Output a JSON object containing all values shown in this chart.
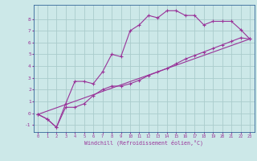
{
  "xlabel": "Windchill (Refroidissement éolien,°C)",
  "bg_color": "#cce8e8",
  "line_color": "#993399",
  "grid_color": "#aacccc",
  "spine_color": "#336699",
  "xlim": [
    -0.5,
    23.5
  ],
  "ylim": [
    -1.6,
    9.2
  ],
  "yticks": [
    -1,
    0,
    1,
    2,
    3,
    4,
    5,
    6,
    7,
    8
  ],
  "xticks": [
    0,
    1,
    2,
    3,
    4,
    5,
    6,
    7,
    8,
    9,
    10,
    11,
    12,
    13,
    14,
    15,
    16,
    17,
    18,
    19,
    20,
    21,
    22,
    23
  ],
  "line1_x": [
    0,
    1,
    2,
    3,
    4,
    5,
    6,
    7,
    8,
    9,
    10,
    11,
    12,
    13,
    14,
    15,
    16,
    17,
    18,
    19,
    20,
    21,
    22,
    23
  ],
  "line1_y": [
    -0.1,
    -0.5,
    -1.2,
    0.8,
    2.7,
    2.7,
    2.5,
    3.5,
    5.0,
    4.8,
    7.0,
    7.5,
    8.3,
    8.1,
    8.7,
    8.7,
    8.3,
    8.3,
    7.5,
    7.8,
    7.8,
    7.8,
    7.1,
    6.3
  ],
  "line2_x": [
    0,
    1,
    2,
    3,
    4,
    5,
    6,
    7,
    8,
    9,
    10,
    11,
    12,
    13,
    14,
    15,
    16,
    17,
    18,
    19,
    20,
    21,
    22,
    23
  ],
  "line2_y": [
    -0.1,
    -0.5,
    -1.2,
    0.5,
    0.5,
    0.8,
    1.5,
    2.0,
    2.3,
    2.3,
    2.5,
    2.8,
    3.2,
    3.5,
    3.8,
    4.2,
    4.6,
    4.9,
    5.2,
    5.5,
    5.8,
    6.1,
    6.4,
    6.3
  ],
  "line3_x": [
    0,
    23
  ],
  "line3_y": [
    -0.1,
    6.3
  ]
}
